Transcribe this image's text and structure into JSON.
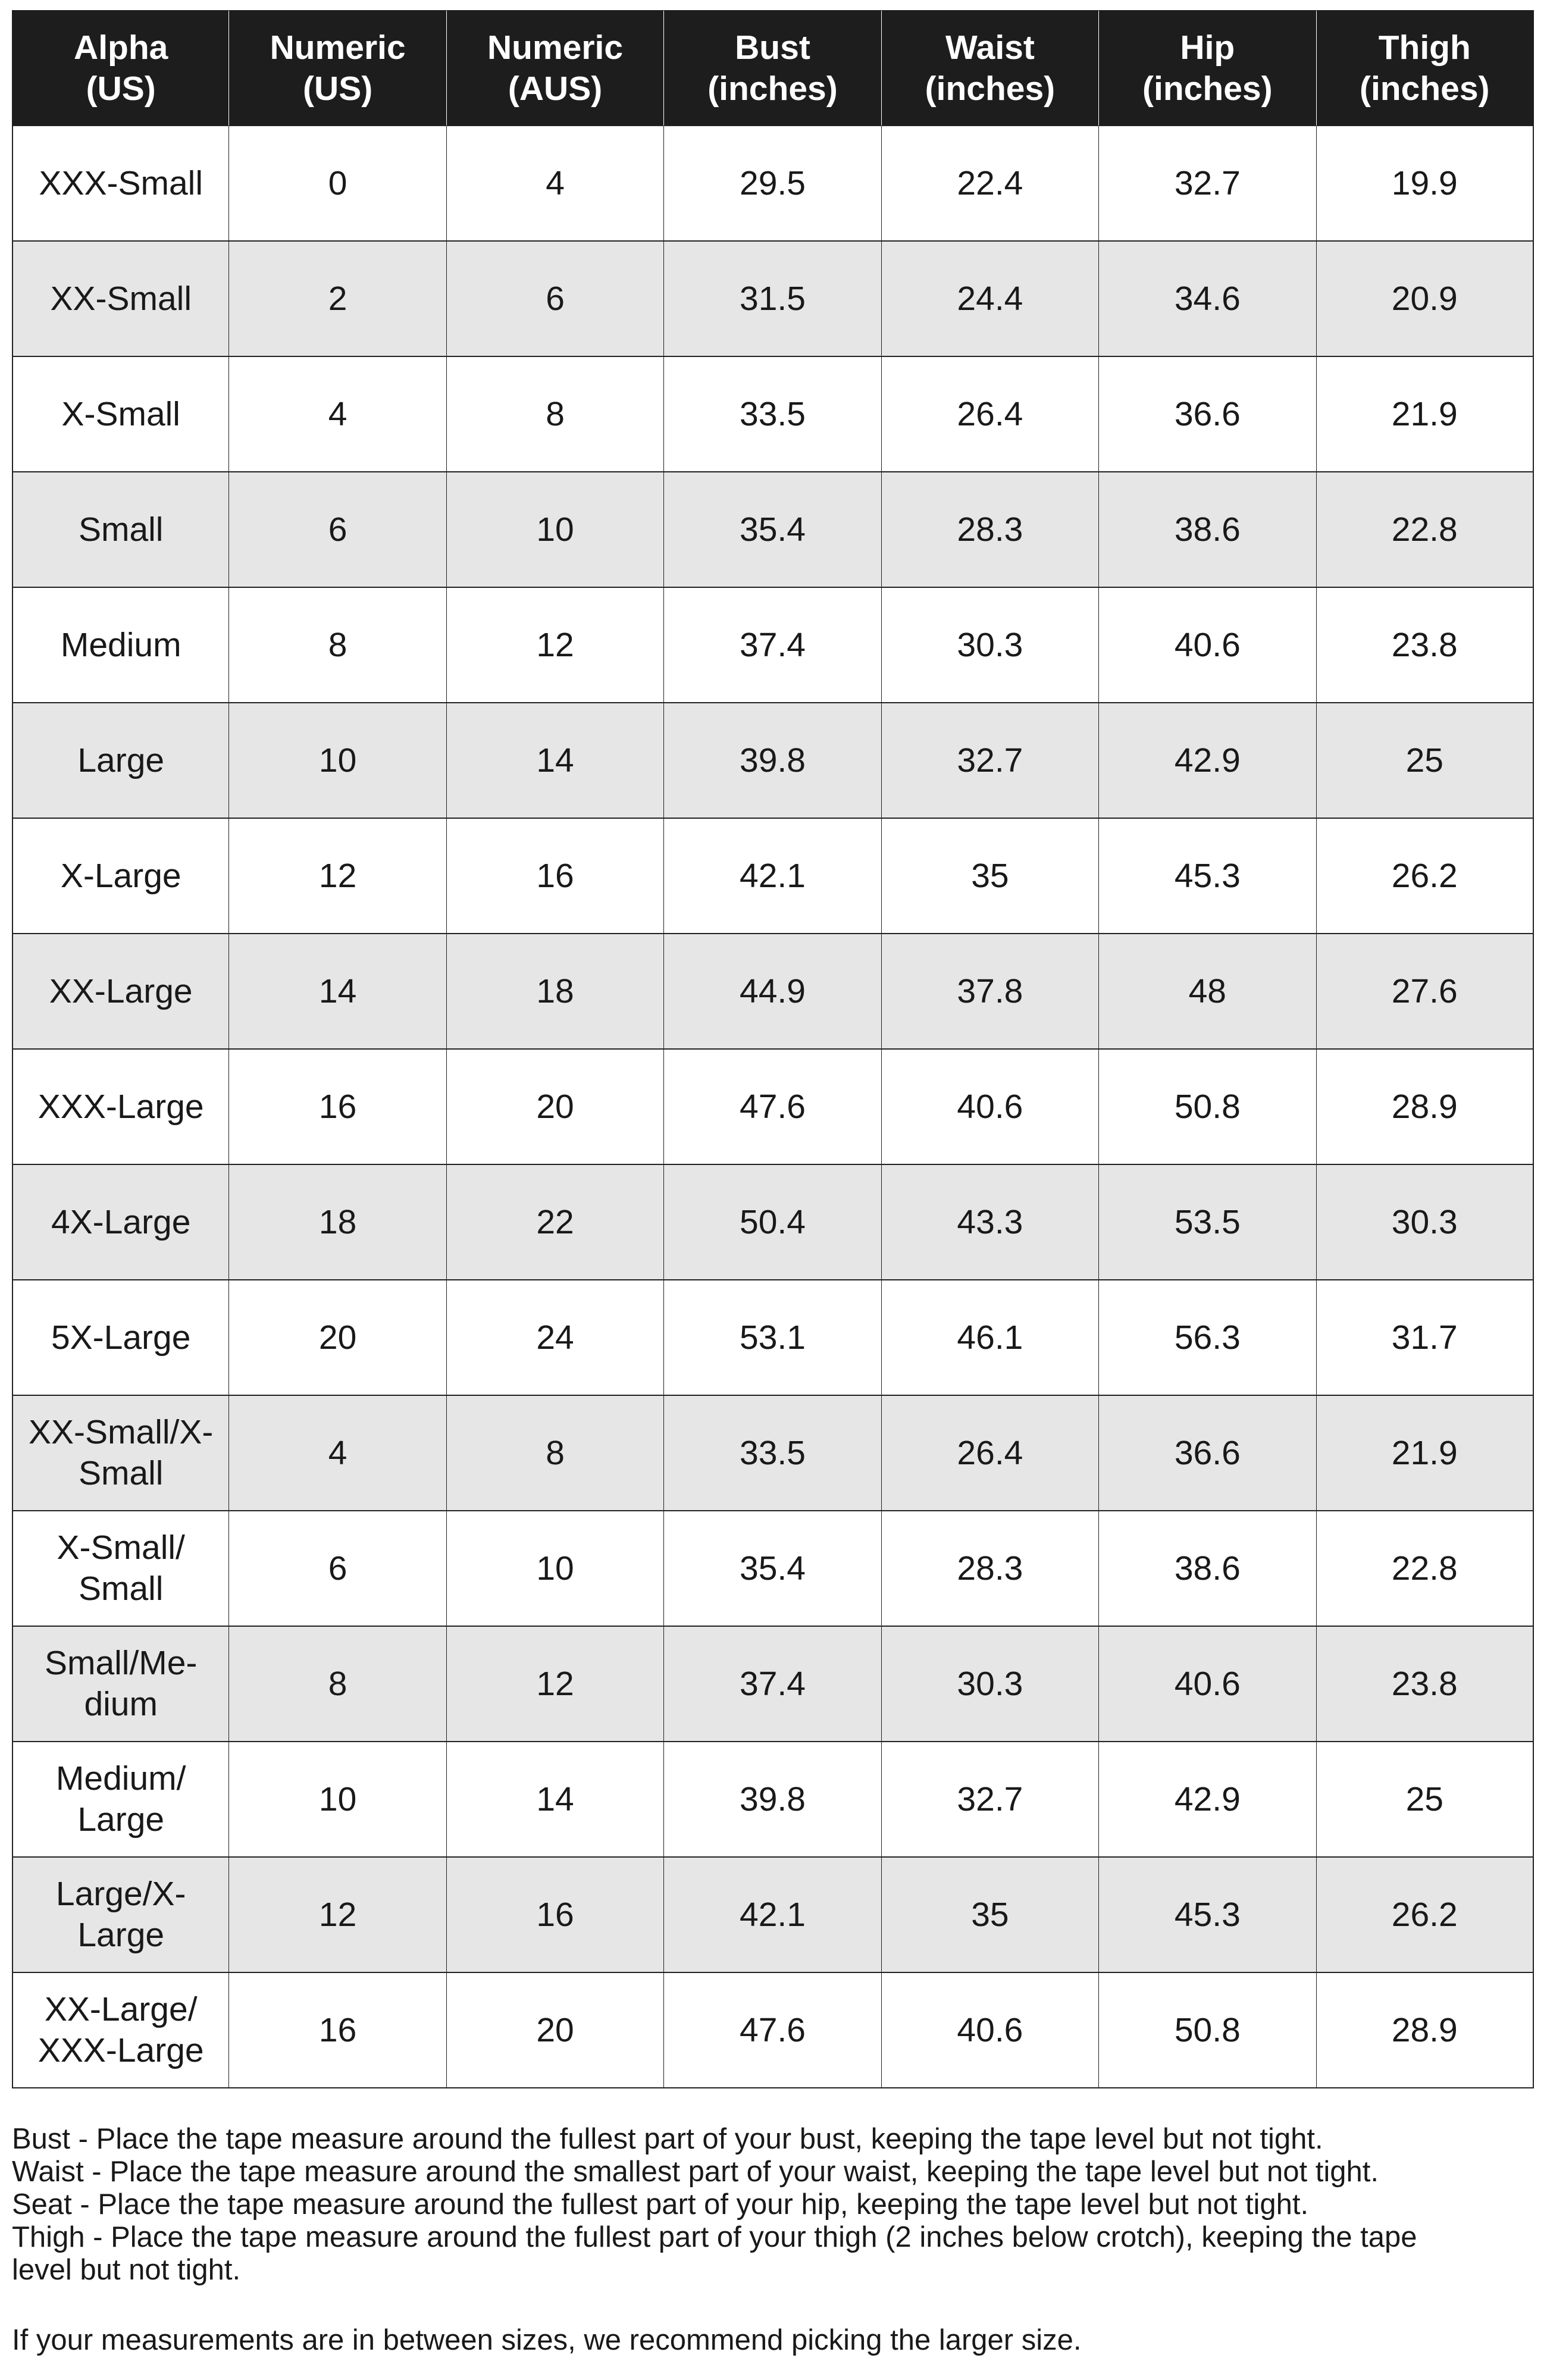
{
  "table": {
    "columns": [
      {
        "id": "alpha_us",
        "label": "Alpha\n(US)"
      },
      {
        "id": "numeric_us",
        "label": "Numeric\n(US)"
      },
      {
        "id": "numeric_aus",
        "label": "Numeric\n(AUS)"
      },
      {
        "id": "bust",
        "label": "Bust\n(inches)"
      },
      {
        "id": "waist",
        "label": "Waist\n(inches)"
      },
      {
        "id": "hip",
        "label": "Hip\n(inches)"
      },
      {
        "id": "thigh",
        "label": "Thigh\n(inches)"
      }
    ],
    "rows": [
      {
        "alpha": "XXX-Small",
        "numeric_us": "0",
        "numeric_aus": "4",
        "bust": "29.5",
        "waist": "22.4",
        "hip": "32.7",
        "thigh": "19.9"
      },
      {
        "alpha": "XX-Small",
        "numeric_us": "2",
        "numeric_aus": "6",
        "bust": "31.5",
        "waist": "24.4",
        "hip": "34.6",
        "thigh": "20.9"
      },
      {
        "alpha": "X-Small",
        "numeric_us": "4",
        "numeric_aus": "8",
        "bust": "33.5",
        "waist": "26.4",
        "hip": "36.6",
        "thigh": "21.9"
      },
      {
        "alpha": "Small",
        "numeric_us": "6",
        "numeric_aus": "10",
        "bust": "35.4",
        "waist": "28.3",
        "hip": "38.6",
        "thigh": "22.8"
      },
      {
        "alpha": "Medium",
        "numeric_us": "8",
        "numeric_aus": "12",
        "bust": "37.4",
        "waist": "30.3",
        "hip": "40.6",
        "thigh": "23.8"
      },
      {
        "alpha": "Large",
        "numeric_us": "10",
        "numeric_aus": "14",
        "bust": "39.8",
        "waist": "32.7",
        "hip": "42.9",
        "thigh": "25"
      },
      {
        "alpha": "X-Large",
        "numeric_us": "12",
        "numeric_aus": "16",
        "bust": "42.1",
        "waist": "35",
        "hip": "45.3",
        "thigh": "26.2"
      },
      {
        "alpha": "XX-Large",
        "numeric_us": "14",
        "numeric_aus": "18",
        "bust": "44.9",
        "waist": "37.8",
        "hip": "48",
        "thigh": "27.6"
      },
      {
        "alpha": "XXX-Large",
        "numeric_us": "16",
        "numeric_aus": "20",
        "bust": "47.6",
        "waist": "40.6",
        "hip": "50.8",
        "thigh": "28.9"
      },
      {
        "alpha": "4X-Large",
        "numeric_us": "18",
        "numeric_aus": "22",
        "bust": "50.4",
        "waist": "43.3",
        "hip": "53.5",
        "thigh": "30.3"
      },
      {
        "alpha": "5X-Large",
        "numeric_us": "20",
        "numeric_aus": "24",
        "bust": "53.1",
        "waist": "46.1",
        "hip": "56.3",
        "thigh": "31.7"
      },
      {
        "alpha": "XX-Small/X-\nSmall",
        "numeric_us": "4",
        "numeric_aus": "8",
        "bust": "33.5",
        "waist": "26.4",
        "hip": "36.6",
        "thigh": "21.9"
      },
      {
        "alpha": "X-Small/\nSmall",
        "numeric_us": "6",
        "numeric_aus": "10",
        "bust": "35.4",
        "waist": "28.3",
        "hip": "38.6",
        "thigh": "22.8"
      },
      {
        "alpha": "Small/Me-\ndium",
        "numeric_us": "8",
        "numeric_aus": "12",
        "bust": "37.4",
        "waist": "30.3",
        "hip": "40.6",
        "thigh": "23.8"
      },
      {
        "alpha": "Medium/\nLarge",
        "numeric_us": "10",
        "numeric_aus": "14",
        "bust": "39.8",
        "waist": "32.7",
        "hip": "42.9",
        "thigh": "25"
      },
      {
        "alpha": "Large/X-\nLarge",
        "numeric_us": "12",
        "numeric_aus": "16",
        "bust": "42.1",
        "waist": "35",
        "hip": "45.3",
        "thigh": "26.2"
      },
      {
        "alpha": "XX-Large/\nXXX-Large",
        "numeric_us": "16",
        "numeric_aus": "20",
        "bust": "47.6",
        "waist": "40.6",
        "hip": "50.8",
        "thigh": "28.9"
      }
    ]
  },
  "footer": {
    "measure_notes": [
      "Bust - Place the tape measure around the fullest part of your bust, keeping the tape level but not tight.",
      "Waist - Place the tape measure around the smallest part of your waist, keeping the tape level but not tight.",
      "Seat - Place the tape measure around the fullest part of your hip, keeping the tape level but not tight.",
      "Thigh - Place the tape measure around the fullest part of your thigh (2 inches below crotch), keeping the tape level but not tight."
    ],
    "between_sizes_note": "If your measurements are in between sizes, we recommend picking the larger size."
  },
  "theme": {
    "header_bg": "#1d1d1d",
    "header_text": "#ffffff",
    "row_alt_bg": "#e6e6e6",
    "border_color": "#222222",
    "text_color": "#191919",
    "page_bg": "#ffffff"
  }
}
